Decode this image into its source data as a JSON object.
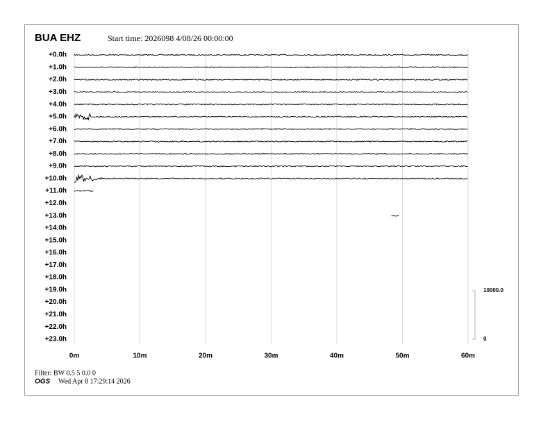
{
  "chart_data": {
    "type": "helicorder",
    "title": "BUA EHZ",
    "subtitle": "Start time: 2026098  4/08/26 00:00:00",
    "categories": [
      "+0.0h",
      "+1.0h",
      "+2.0h",
      "+3.0h",
      "+4.0h",
      "+5.0h",
      "+6.0h",
      "+7.0h",
      "+8.0h",
      "+9.0h",
      "+10.0h",
      "+11.0h",
      "+12.0h",
      "+13.0h",
      "+14.0h",
      "+15.0h",
      "+16.0h",
      "+17.0h",
      "+18.0h",
      "+19.0h",
      "+20.0h",
      "+21.0h",
      "+22.0h",
      "+23.0h"
    ],
    "xlim": [
      0,
      60
    ],
    "xticks": [
      {
        "value": 0,
        "label": "0m"
      },
      {
        "value": 10,
        "label": "10m"
      },
      {
        "value": 20,
        "label": "20m"
      },
      {
        "value": 30,
        "label": "30m"
      },
      {
        "value": 40,
        "label": "40m"
      },
      {
        "value": 50,
        "label": "50m"
      },
      {
        "value": 60,
        "label": "60m"
      }
    ],
    "scale_ticks": [
      {
        "value": 10000,
        "label": "10000.0"
      },
      0
    ],
    "grid": true,
    "color": "#000000",
    "filter": "Filter: BW 0.5 5 0.0 0",
    "organization": "OGS",
    "timestamp": "Wed Apr  8 17:29:14 2026"
  }
}
